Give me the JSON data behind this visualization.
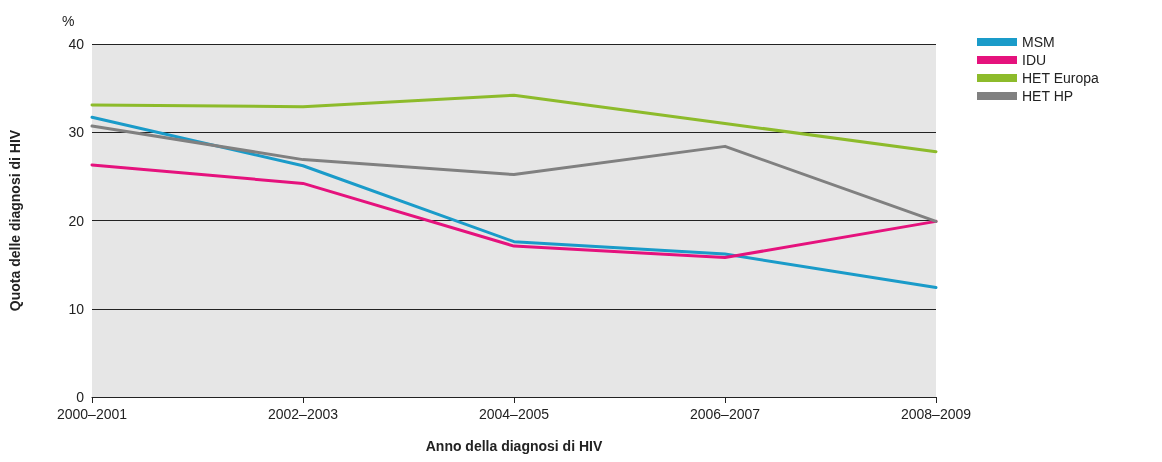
{
  "chart_data": {
    "type": "line",
    "xlabel": "Anno della diagnosi di HIV",
    "ylabel": "Quota delle diagnosi di HIV",
    "annotations": [
      "%"
    ],
    "categories": [
      "2000–2001",
      "2002–2003",
      "2004–2005",
      "2006–2007",
      "2008–2009"
    ],
    "series": [
      {
        "name": "MSM",
        "color": "#1a9bc9",
        "values": [
          31.7,
          26.2,
          17.6,
          16.2,
          12.4
        ]
      },
      {
        "name": "IDU",
        "color": "#e5127d",
        "values": [
          26.3,
          24.2,
          17.1,
          15.8,
          19.9
        ]
      },
      {
        "name": "HET Europa",
        "color": "#8dbb2b",
        "values": [
          33.1,
          32.9,
          34.2,
          31.0,
          27.8
        ]
      },
      {
        "name": "HET HP",
        "color": "#808080",
        "values": [
          30.7,
          26.9,
          25.2,
          28.4,
          19.9
        ]
      }
    ],
    "ylim": [
      0,
      40
    ],
    "yticks": [
      0,
      10,
      20,
      30,
      40
    ],
    "grid": "y",
    "legend": "top right",
    "marker": "none",
    "line_style": "solid"
  }
}
